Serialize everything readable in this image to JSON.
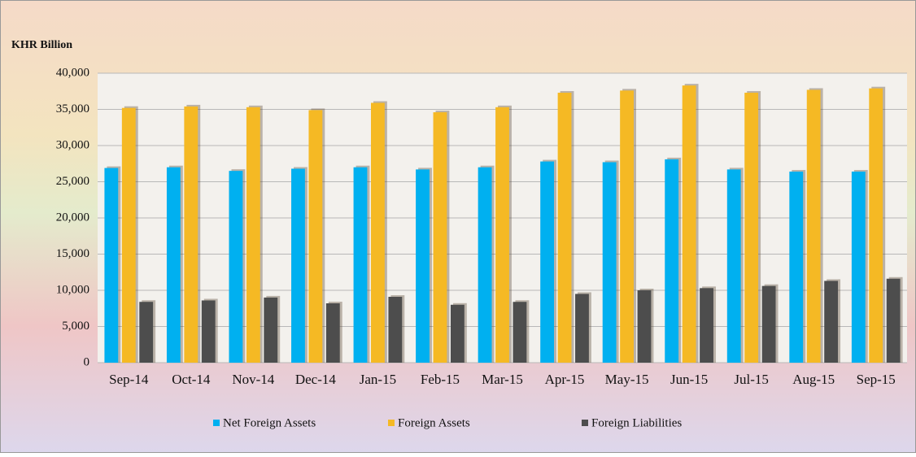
{
  "chart_data": {
    "type": "bar",
    "y_label": "KHR Billion",
    "categories": [
      "Sep-14",
      "Oct-14",
      "Nov-14",
      "Dec-14",
      "Jan-15",
      "Feb-15",
      "Mar-15",
      "Apr-15",
      "May-15",
      "Jun-15",
      "Jul-15",
      "Aug-15",
      "Sep-15"
    ],
    "series": [
      {
        "name": "Net Foreign Assets",
        "color": "#00b0f0",
        "values": [
          26900,
          27000,
          26500,
          26800,
          27000,
          26700,
          27000,
          27800,
          27700,
          28100,
          26700,
          26400,
          26400
        ]
      },
      {
        "name": "Foreign Assets",
        "color": "#f5b924",
        "values": [
          35200,
          35400,
          35300,
          34900,
          35900,
          34600,
          35300,
          37300,
          37600,
          38300,
          37300,
          37700,
          37900
        ]
      },
      {
        "name": "Foreign Liabilities",
        "color": "#4d4d4d",
        "values": [
          8400,
          8600,
          9000,
          8200,
          9100,
          8000,
          8400,
          9500,
          10000,
          10300,
          10600,
          11300,
          11600
        ]
      }
    ],
    "ylim": [
      0,
      40000
    ],
    "yticks": [
      0,
      {
        "value": 5000,
        "label": "5,000"
      },
      {
        "value": 10000,
        "label": "10,000"
      },
      {
        "value": 15000,
        "label": "15,000"
      },
      {
        "value": 20000,
        "label": "20,000"
      },
      {
        "value": 25000,
        "label": "25,000"
      },
      {
        "value": 30000,
        "label": "30,000"
      },
      {
        "value": 35000,
        "label": "35,000"
      },
      {
        "value": 40000,
        "label": "40,000"
      }
    ],
    "grid": true
  }
}
